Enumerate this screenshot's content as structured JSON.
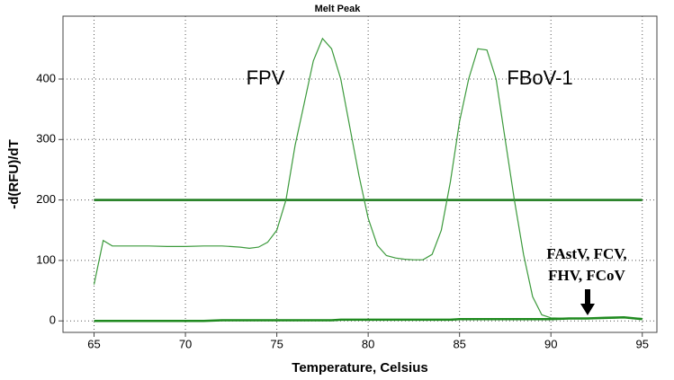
{
  "chart_data": {
    "type": "line",
    "title": "Melt Peak",
    "x_label": "Temperature, Celsius",
    "y_label": "-d(RFU)/dT",
    "x": [
      65,
      65.5,
      66,
      67,
      68,
      69,
      70,
      71,
      72,
      73,
      73.5,
      74,
      74.5,
      75,
      75.5,
      76,
      76.5,
      77,
      77.5,
      78,
      78.5,
      79,
      79.5,
      80,
      80.5,
      81,
      81.5,
      82,
      82.5,
      83,
      83.5,
      84,
      84.5,
      85,
      85.5,
      86,
      86.5,
      87,
      87.5,
      88,
      88.5,
      89,
      89.5,
      90,
      91,
      92,
      93,
      94,
      95
    ],
    "series": [
      {
        "color": "#3c9a3c",
        "values": [
          60,
          133,
          124,
          124,
          124,
          123,
          123,
          124,
          124,
          122,
          120,
          122,
          130,
          150,
          200,
          290,
          360,
          430,
          467,
          450,
          400,
          320,
          240,
          170,
          125,
          108,
          104,
          102,
          101,
          101,
          110,
          150,
          230,
          330,
          400,
          450,
          448,
          400,
          300,
          200,
          110,
          40,
          10,
          5,
          4,
          4,
          4,
          5,
          4
        ]
      },
      {
        "color": "#1f8a1f",
        "values": [
          0,
          0,
          0,
          0,
          0,
          0,
          0,
          0,
          1,
          1,
          1,
          1,
          1,
          1,
          1,
          1,
          1,
          1,
          1,
          1,
          2,
          2,
          2,
          2,
          2,
          2,
          2,
          2,
          2,
          2,
          2,
          2,
          2,
          3,
          3,
          3,
          3,
          3,
          3,
          3,
          3,
          3,
          3,
          3,
          4,
          4,
          5,
          6,
          3
        ]
      }
    ],
    "threshold": {
      "value": 200,
      "color": "#1a7a1a"
    },
    "annotations": [
      "FPV",
      "FBoV-1",
      "FAstV, FCV,",
      "FHV, FCoV"
    ],
    "xlim": [
      63.3,
      95.8
    ],
    "ylim": [
      -19,
      504
    ],
    "xticks": [
      65,
      70,
      75,
      80,
      85,
      90,
      95
    ],
    "yticks": [
      0,
      100,
      200,
      300,
      400
    ],
    "grid": true
  }
}
